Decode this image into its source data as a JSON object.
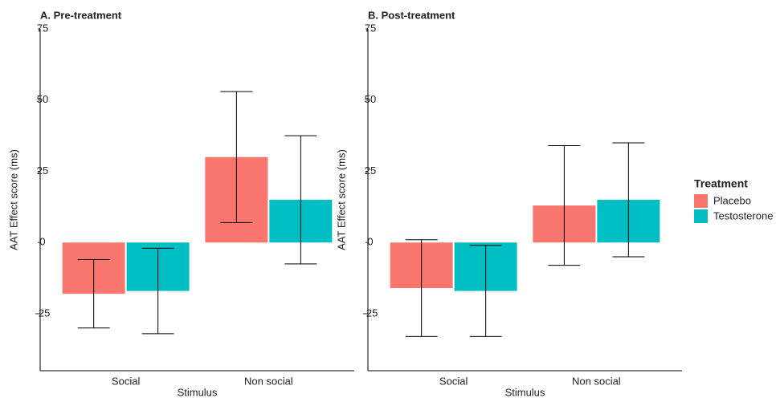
{
  "chart_data": [
    {
      "type": "bar",
      "title": "A. Pre-treatment",
      "x_label": "Stimulus",
      "y_label": "AAT Effect score (ms)",
      "categories": [
        "Social",
        "Non social"
      ],
      "series": [
        {
          "name": "Placebo",
          "color": "#F8766D",
          "values": [
            -18,
            30
          ],
          "errors": [
            12,
            23
          ]
        },
        {
          "name": "Testosterone",
          "color": "#00BFC4",
          "values": [
            -17,
            15
          ],
          "errors": [
            15,
            22.5
          ]
        }
      ],
      "ylim": [
        -45,
        75
      ],
      "yticks": [
        -25,
        0,
        25,
        50,
        75
      ]
    },
    {
      "type": "bar",
      "title": "B. Post-treatment",
      "x_label": "Stimulus",
      "y_label": "AAT Effect score (ms)",
      "categories": [
        "Social",
        "Non social"
      ],
      "series": [
        {
          "name": "Placebo",
          "color": "#F8766D",
          "values": [
            -16,
            13
          ],
          "errors": [
            17,
            21
          ]
        },
        {
          "name": "Testosterone",
          "color": "#00BFC4",
          "values": [
            -17,
            15
          ],
          "errors": [
            16,
            20
          ]
        }
      ],
      "ylim": [
        -45,
        75
      ],
      "yticks": [
        -25,
        0,
        25,
        50,
        75
      ]
    }
  ],
  "legend": {
    "title": "Treatment"
  }
}
